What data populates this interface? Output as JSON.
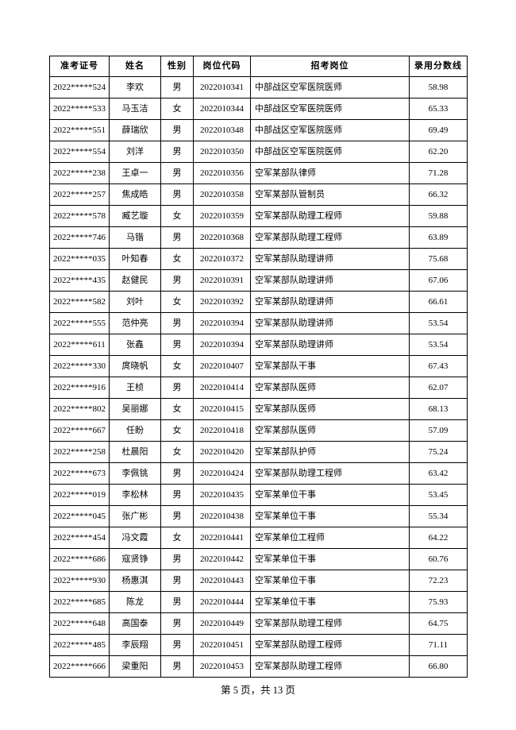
{
  "table": {
    "headers": [
      "准考证号",
      "姓名",
      "性别",
      "岗位代码",
      "招考岗位",
      "录用分数线"
    ],
    "rows": [
      [
        "2022*****524",
        "李欢",
        "男",
        "2022010341",
        "中部战区空军医院医师",
        "58.98"
      ],
      [
        "2022*****533",
        "马玉洁",
        "女",
        "2022010344",
        "中部战区空军医院医师",
        "65.33"
      ],
      [
        "2022*****551",
        "薛瑞欣",
        "男",
        "2022010348",
        "中部战区空军医院医师",
        "69.49"
      ],
      [
        "2022*****554",
        "刘洋",
        "男",
        "2022010350",
        "中部战区空军医院医师",
        "62.20"
      ],
      [
        "2022*****238",
        "王卓一",
        "男",
        "2022010356",
        "空军某部队律师",
        "71.28"
      ],
      [
        "2022*****257",
        "焦成皓",
        "男",
        "2022010358",
        "空军某部队管制员",
        "66.32"
      ],
      [
        "2022*****578",
        "臧艺璇",
        "女",
        "2022010359",
        "空军某部队助理工程师",
        "59.88"
      ],
      [
        "2022*****746",
        "马锴",
        "男",
        "2022010368",
        "空军某部队助理工程师",
        "63.89"
      ],
      [
        "2022*****035",
        "叶知春",
        "女",
        "2022010372",
        "空军某部队助理讲师",
        "75.68"
      ],
      [
        "2022*****435",
        "赵健民",
        "男",
        "2022010391",
        "空军某部队助理讲师",
        "67.06"
      ],
      [
        "2022*****582",
        "刘叶",
        "女",
        "2022010392",
        "空军某部队助理讲师",
        "66.61"
      ],
      [
        "2022*****555",
        "范仲亮",
        "男",
        "2022010394",
        "空军某部队助理讲师",
        "53.54"
      ],
      [
        "2022*****611",
        "张鑫",
        "男",
        "2022010394",
        "空军某部队助理讲师",
        "53.54"
      ],
      [
        "2022*****330",
        "庹晓帆",
        "女",
        "2022010407",
        "空军某部队干事",
        "67.43"
      ],
      [
        "2022*****916",
        "王桢",
        "男",
        "2022010414",
        "空军某部队医师",
        "62.07"
      ],
      [
        "2022*****802",
        "吴丽娜",
        "女",
        "2022010415",
        "空军某部队医师",
        "68.13"
      ],
      [
        "2022*****667",
        "任盼",
        "女",
        "2022010418",
        "空军某部队医师",
        "57.09"
      ],
      [
        "2022*****258",
        "杜晨阳",
        "女",
        "2022010420",
        "空军某部队护师",
        "75.24"
      ],
      [
        "2022*****673",
        "李佩铫",
        "男",
        "2022010424",
        "空军某部队助理工程师",
        "63.42"
      ],
      [
        "2022*****019",
        "李松林",
        "男",
        "2022010435",
        "空军某单位干事",
        "53.45"
      ],
      [
        "2022*****045",
        "张广彬",
        "男",
        "2022010438",
        "空军某单位干事",
        "55.34"
      ],
      [
        "2022*****454",
        "冯文霞",
        "女",
        "2022010441",
        "空军某单位工程师",
        "64.22"
      ],
      [
        "2022*****686",
        "寇贤铮",
        "男",
        "2022010442",
        "空军某单位干事",
        "60.76"
      ],
      [
        "2022*****930",
        "杨惠淇",
        "男",
        "2022010443",
        "空军某单位干事",
        "72.23"
      ],
      [
        "2022*****685",
        "陈龙",
        "男",
        "2022010444",
        "空军某单位干事",
        "75.93"
      ],
      [
        "2022*****648",
        "高国泰",
        "男",
        "2022010449",
        "空军某部队助理工程师",
        "64.75"
      ],
      [
        "2022*****485",
        "李辰翔",
        "男",
        "2022010451",
        "空军某部队助理工程师",
        "71.11"
      ],
      [
        "2022*****666",
        "梁重阳",
        "男",
        "2022010453",
        "空军某部队助理工程师",
        "66.80"
      ]
    ]
  },
  "footer": {
    "page_label": "第 5 页，共 13 页"
  },
  "colors": {
    "page_background": "#ffffff",
    "border": "#000000",
    "text": "#000000"
  }
}
